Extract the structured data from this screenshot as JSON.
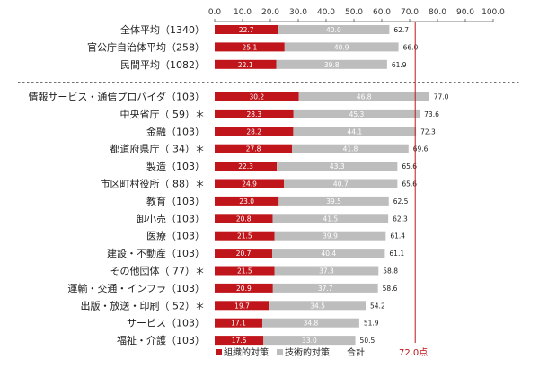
{
  "chart_data": {
    "type": "bar",
    "stacked": true,
    "orientation": "horizontal",
    "xlim": [
      0,
      100
    ],
    "xticks": [
      "0.0",
      "10.0",
      "20.0",
      "30.0",
      "40.0",
      "50.0",
      "60.0",
      "70.0",
      "80.0",
      "90.0",
      "100.0"
    ],
    "reference_value": 72.0,
    "reference_label": "72.0点",
    "legend": {
      "position": "bottom",
      "items": [
        "組織的対策",
        "技術的対策",
        "合計"
      ]
    },
    "colors": {
      "org": "#c0161b",
      "tech": "#bdbdbd",
      "ref": "#c0161b"
    },
    "groups": [
      {
        "rows": [
          {
            "label": "全体平均（1340）",
            "org": 22.7,
            "tech": 40.0,
            "total": 62.7
          },
          {
            "label": "官公庁自治体平均（258）",
            "org": 25.1,
            "tech": 40.9,
            "total": 66.0
          },
          {
            "label": "民間平均（1082）",
            "org": 22.1,
            "tech": 39.8,
            "total": 61.9
          }
        ]
      },
      {
        "rows": [
          {
            "label": "情報サービス・通信プロバイダ（103）",
            "org": 30.2,
            "tech": 46.8,
            "total": 77.0
          },
          {
            "label": "中央省庁（ 59）＊",
            "org": 28.3,
            "tech": 45.3,
            "total": 73.6
          },
          {
            "label": "金融（103）",
            "org": 28.2,
            "tech": 44.1,
            "total": 72.3
          },
          {
            "label": "都道府県庁（ 34）＊",
            "org": 27.8,
            "tech": 41.8,
            "total": 69.6
          },
          {
            "label": "製造（103）",
            "org": 22.3,
            "tech": 43.3,
            "total": 65.6
          },
          {
            "label": "市区町村役所（ 88）＊",
            "org": 24.9,
            "tech": 40.7,
            "total": 65.6
          },
          {
            "label": "教育（103）",
            "org": 23.0,
            "tech": 39.5,
            "total": 62.5
          },
          {
            "label": "卸小売（103）",
            "org": 20.8,
            "tech": 41.5,
            "total": 62.3
          },
          {
            "label": "医療（103）",
            "org": 21.5,
            "tech": 39.9,
            "total": 61.4
          },
          {
            "label": "建設・不動産（103）",
            "org": 20.7,
            "tech": 40.4,
            "total": 61.1
          },
          {
            "label": "その他団体（ 77）＊",
            "org": 21.5,
            "tech": 37.3,
            "total": 58.8
          },
          {
            "label": "運輸・交通・インフラ（103）",
            "org": 20.9,
            "tech": 37.7,
            "total": 58.6
          },
          {
            "label": "出版・放送・印刷（ 52）＊",
            "org": 19.7,
            "tech": 34.5,
            "total": 54.2
          },
          {
            "label": "サービス（103）",
            "org": 17.1,
            "tech": 34.8,
            "total": 51.9
          },
          {
            "label": "福祉・介護（103）",
            "org": 17.5,
            "tech": 33.0,
            "total": 50.5
          }
        ]
      }
    ]
  }
}
